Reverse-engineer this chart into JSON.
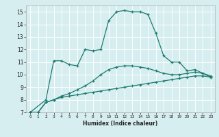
{
  "xlabel": "Humidex (Indice chaleur)",
  "bg_color": "#d6eef0",
  "plot_bg_color": "#d6eef0",
  "line_color": "#1a7a6e",
  "grid_color": "#ffffff",
  "xlim": [
    -0.5,
    23.5
  ],
  "ylim": [
    7,
    15.5
  ],
  "xticks": [
    0,
    1,
    2,
    3,
    4,
    5,
    6,
    7,
    8,
    9,
    10,
    11,
    12,
    13,
    14,
    15,
    16,
    17,
    18,
    19,
    20,
    21,
    22,
    23
  ],
  "yticks": [
    7,
    8,
    9,
    10,
    11,
    12,
    13,
    14,
    15
  ],
  "curve1_x": [
    0,
    1,
    2,
    3,
    4,
    5,
    6,
    7,
    8,
    9,
    10,
    11,
    12,
    13,
    14,
    15,
    16,
    17,
    18,
    19,
    20,
    21,
    22,
    23
  ],
  "curve1_y": [
    7.0,
    7.0,
    7.8,
    8.0,
    8.2,
    8.3,
    8.4,
    8.5,
    8.6,
    8.7,
    8.8,
    8.9,
    9.0,
    9.1,
    9.2,
    9.3,
    9.4,
    9.5,
    9.6,
    9.7,
    9.8,
    9.9,
    9.9,
    9.8
  ],
  "curve2_x": [
    0,
    1,
    2,
    3,
    4,
    5,
    6,
    7,
    8,
    9,
    10,
    11,
    12,
    13,
    14,
    15,
    16,
    17,
    18,
    19,
    20,
    21,
    22,
    23
  ],
  "curve2_y": [
    7.0,
    7.0,
    7.8,
    8.0,
    8.3,
    8.5,
    8.8,
    9.1,
    9.5,
    10.0,
    10.4,
    10.6,
    10.7,
    10.7,
    10.6,
    10.5,
    10.3,
    10.1,
    10.0,
    10.0,
    10.1,
    10.2,
    10.1,
    9.9
  ],
  "curve3_x": [
    0,
    2,
    3,
    4,
    5,
    6,
    7,
    8,
    9,
    10,
    11,
    12,
    13,
    14,
    15,
    16,
    17,
    18,
    19,
    20,
    21,
    22,
    23
  ],
  "curve3_y": [
    7.0,
    8.0,
    11.1,
    11.1,
    10.8,
    10.7,
    12.0,
    11.9,
    12.0,
    14.3,
    15.0,
    15.1,
    15.0,
    15.0,
    14.8,
    13.3,
    11.5,
    11.0,
    11.0,
    10.3,
    10.4,
    10.1,
    9.8
  ]
}
